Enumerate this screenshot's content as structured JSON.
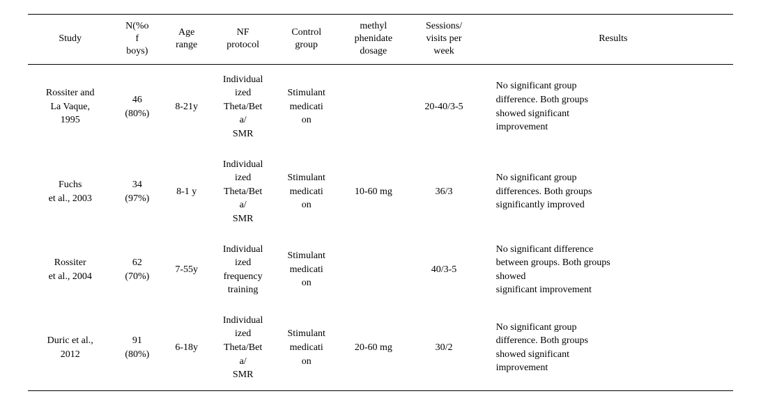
{
  "columns": [
    "Study",
    "N(%o\nf\nboys)",
    "Age\nrange",
    "NF\nprotocol",
    "Control\ngroup",
    "methyl\nphenidate\ndosage",
    "Sessions/\nvisits per\nweek",
    "Results"
  ],
  "rows": [
    {
      "study": "Rossiter and\nLa Vaque,\n1995",
      "n": "46\n(80%)",
      "age": "8-21y",
      "nf": "Individual\nized\nTheta/Bet\na/\nSMR",
      "ctrl": "Stimulant\nmedicati\non",
      "dose": "",
      "sess": "20-40/3-5",
      "results": "No significant group\ndifference. Both groups\nshowed significant\nimprovement"
    },
    {
      "study": "Fuchs\net al., 2003",
      "n": "34\n(97%)",
      "age": "8-1 y",
      "nf": "Individual\nized\nTheta/Bet\na/\nSMR",
      "ctrl": "Stimulant\nmedicati\non",
      "dose": "10-60 mg",
      "sess": "36/3",
      "results": "No significant group\ndifferences. Both groups\nsignificantly improved"
    },
    {
      "study": "Rossiter\net al., 2004",
      "n": "62\n(70%)",
      "age": "7-55y",
      "nf": "Individual\nized\nfrequency\ntraining",
      "ctrl": "Stimulant\nmedicati\non",
      "dose": "",
      "sess": "40/3-5",
      "results": "No significant difference\nbetween groups. Both groups\nshowed\nsignificant improvement"
    },
    {
      "study": "Duric et al.,\n2012",
      "n": "91\n(80%)",
      "age": "6-18y",
      "nf": "Individual\nized\nTheta/Bet\na/\nSMR",
      "ctrl": "Stimulant\nmedicati\non",
      "dose": "20-60 mg",
      "sess": "30/2",
      "results": "No significant group\ndifference. Both groups\nshowed significant\nimprovement"
    }
  ]
}
